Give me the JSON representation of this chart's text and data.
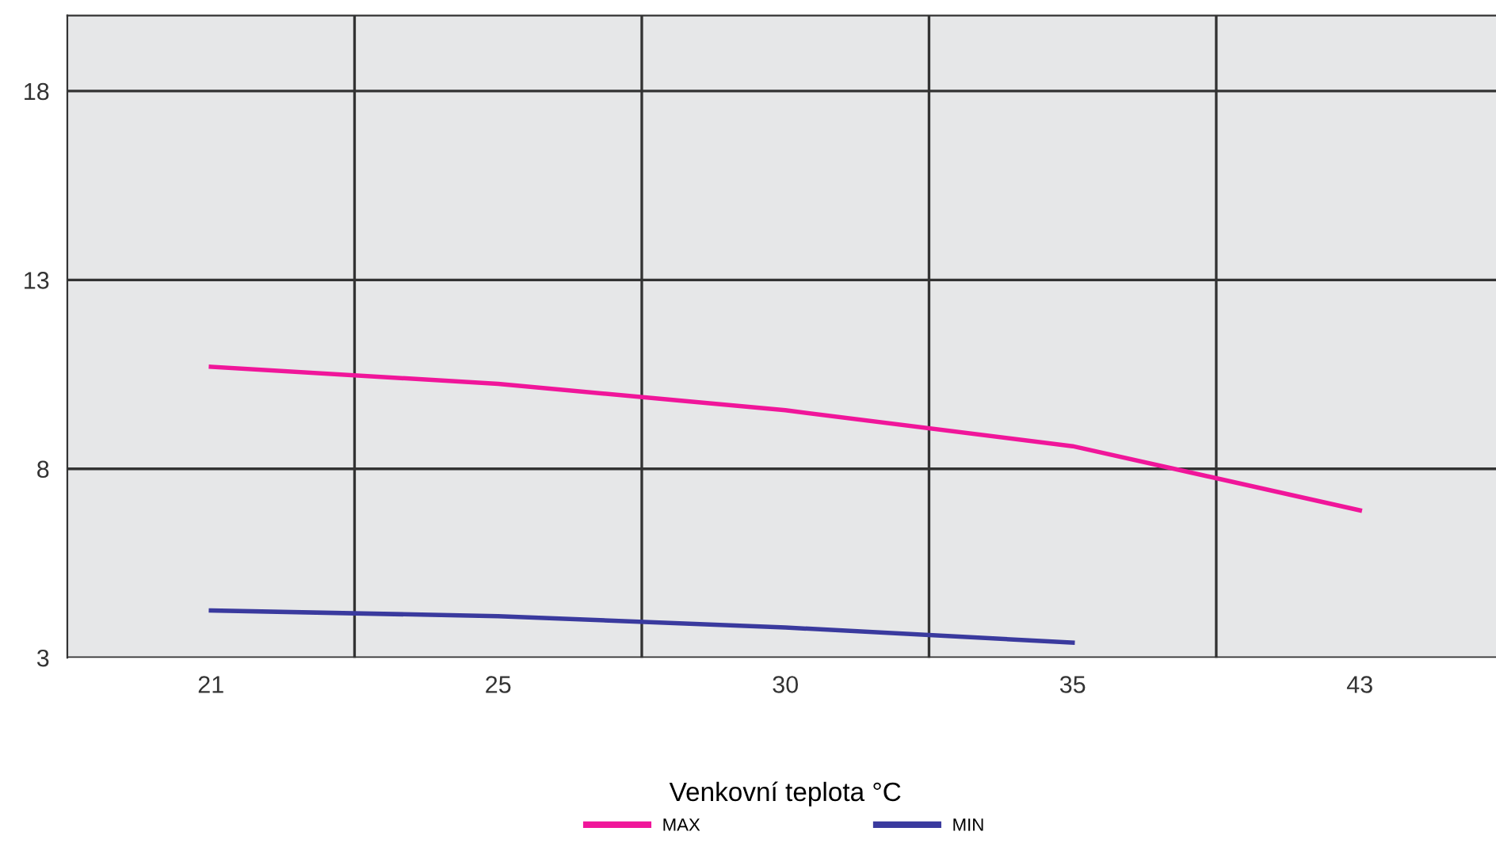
{
  "chart_data": {
    "type": "line",
    "xlabel": "Venkovní teplota °C",
    "categories": [
      "21",
      "25",
      "30",
      "35",
      "43"
    ],
    "series": [
      {
        "name": "MAX",
        "color": "#f0169a",
        "values": [
          10.7,
          10.25,
          9.55,
          8.6,
          6.9
        ]
      },
      {
        "name": "MIN",
        "color": "#3a3a9e",
        "values": [
          4.25,
          4.1,
          3.8,
          3.4,
          null
        ]
      }
    ],
    "ylim": [
      3,
      20
    ],
    "yticks": [
      3,
      8,
      13,
      18
    ],
    "grid": true,
    "legend": "bottom",
    "marker": "none",
    "line_style": "solid"
  }
}
